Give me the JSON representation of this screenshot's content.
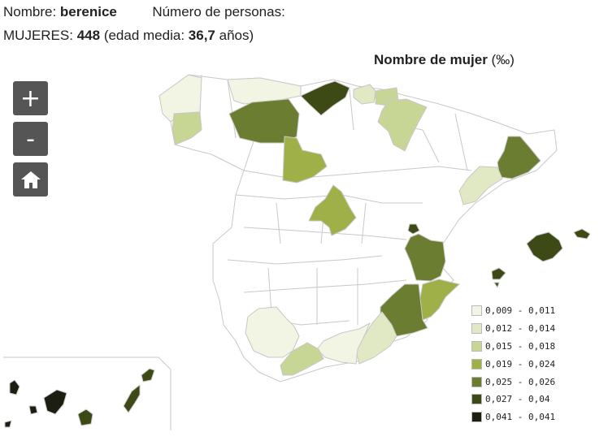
{
  "header": {
    "name_label": "Nombre:",
    "name_value": "berenice",
    "persons_label": "Número de personas:",
    "women_label": "MUJERES:",
    "women_count": "448",
    "age_label": "(edad media:",
    "age_value": "36,7",
    "age_unit": "años)"
  },
  "map": {
    "title": "Nombre de mujer",
    "unit": "(‰)"
  },
  "controls": {
    "zoom_in": "+",
    "zoom_out": "-",
    "home_icon": "home-icon"
  },
  "legend": [
    {
      "label": "0,009 - 0,011",
      "color": "#f2f4e4"
    },
    {
      "label": "0,012 - 0,014",
      "color": "#e1e8c4"
    },
    {
      "label": "0,015 - 0,018",
      "color": "#c7d595"
    },
    {
      "label": "0,019 - 0,024",
      "color": "#a0b048"
    },
    {
      "label": "0,025 - 0,026",
      "color": "#6b7d30"
    },
    {
      "label": "0,027 - 0,04",
      "color": "#3d4a15"
    },
    {
      "label": "0,041 - 0,041",
      "color": "#1b1e10"
    }
  ]
}
